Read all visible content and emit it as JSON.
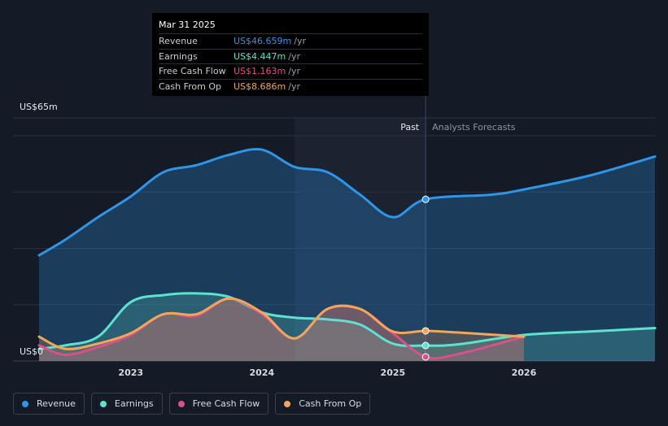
{
  "chart_data": {
    "type": "area",
    "title": "",
    "xlabel": "",
    "ylabel": "",
    "y_unit_top": "US$65m",
    "y_unit_bottom": "US$0",
    "ylim": [
      0,
      65
    ],
    "xlim": [
      2022.3,
      2027.0
    ],
    "x_ticks": [
      {
        "value": 2023.0,
        "label": "2023"
      },
      {
        "value": 2024.0,
        "label": "2024"
      },
      {
        "value": 2025.0,
        "label": "2025"
      },
      {
        "value": 2026.0,
        "label": "2026"
      }
    ],
    "past_label": "Past",
    "forecast_label": "Analysts Forecasts",
    "divider_x": 2025.25,
    "shade_start_x": 2024.25,
    "series": [
      {
        "name": "Revenue",
        "color": "#2f95e8",
        "values": [
          [
            2022.3,
            30.5
          ],
          [
            2022.5,
            35.0
          ],
          [
            2022.75,
            41.5
          ],
          [
            2023.0,
            47.5
          ],
          [
            2023.25,
            54.5
          ],
          [
            2023.5,
            56.5
          ],
          [
            2023.75,
            59.5
          ],
          [
            2024.0,
            61.0
          ],
          [
            2024.25,
            56.0
          ],
          [
            2024.5,
            54.5
          ],
          [
            2024.75,
            48.0
          ],
          [
            2025.0,
            41.5
          ],
          [
            2025.25,
            46.659
          ],
          [
            2025.75,
            48.0
          ],
          [
            2026.0,
            49.5
          ],
          [
            2026.5,
            53.5
          ],
          [
            2027.0,
            59.0
          ]
        ]
      },
      {
        "name": "Earnings",
        "color": "#5ee1cf",
        "values": [
          [
            2022.3,
            3.5
          ],
          [
            2022.5,
            4.5
          ],
          [
            2022.75,
            7.0
          ],
          [
            2023.0,
            17.0
          ],
          [
            2023.25,
            19.0
          ],
          [
            2023.5,
            19.5
          ],
          [
            2023.75,
            18.5
          ],
          [
            2024.0,
            14.0
          ],
          [
            2024.25,
            12.5
          ],
          [
            2024.5,
            12.0
          ],
          [
            2024.75,
            10.5
          ],
          [
            2025.0,
            5.0
          ],
          [
            2025.25,
            4.447
          ],
          [
            2025.5,
            4.8
          ],
          [
            2026.0,
            7.5
          ],
          [
            2026.5,
            8.5
          ],
          [
            2027.0,
            9.5
          ]
        ]
      },
      {
        "name": "Free Cash Flow",
        "color": "#d9508a",
        "values": [
          [
            2022.3,
            4.5
          ],
          [
            2022.5,
            1.8
          ],
          [
            2022.75,
            4.0
          ],
          [
            2023.0,
            7.5
          ],
          [
            2023.25,
            13.5
          ],
          [
            2023.5,
            13.0
          ],
          [
            2023.75,
            18.0
          ],
          [
            2024.0,
            13.5
          ],
          [
            2024.25,
            6.5
          ],
          [
            2024.5,
            15.0
          ],
          [
            2024.75,
            15.0
          ],
          [
            2025.0,
            8.0
          ],
          [
            2025.25,
            1.163
          ],
          [
            2025.5,
            2.0
          ],
          [
            2026.0,
            7.0
          ]
        ]
      },
      {
        "name": "Cash From Op",
        "color": "#f2a65a",
        "values": [
          [
            2022.3,
            7.0
          ],
          [
            2022.5,
            3.5
          ],
          [
            2022.75,
            5.0
          ],
          [
            2023.0,
            8.0
          ],
          [
            2023.25,
            13.5
          ],
          [
            2023.5,
            13.5
          ],
          [
            2023.75,
            18.0
          ],
          [
            2024.0,
            14.0
          ],
          [
            2024.25,
            6.5
          ],
          [
            2024.5,
            15.0
          ],
          [
            2024.75,
            15.0
          ],
          [
            2025.0,
            8.5
          ],
          [
            2025.25,
            8.686
          ],
          [
            2025.5,
            8.2
          ],
          [
            2026.0,
            7.0
          ]
        ]
      }
    ],
    "marker_x": 2025.25,
    "grid": true
  },
  "tooltip": {
    "date": "Mar 31 2025",
    "rows": [
      {
        "label": "Revenue",
        "value": "US$46.659m",
        "unit": "/yr",
        "color": "#2f95e8"
      },
      {
        "label": "Earnings",
        "value": "US$4.447m",
        "unit": "/yr",
        "color": "#5ee1cf"
      },
      {
        "label": "Free Cash Flow",
        "value": "US$1.163m",
        "unit": "/yr",
        "color": "#d9508a"
      },
      {
        "label": "Cash From Op",
        "value": "US$8.686m",
        "unit": "/yr",
        "color": "#f2a65a"
      }
    ]
  },
  "legend": [
    {
      "label": "Revenue",
      "color": "#2f95e8"
    },
    {
      "label": "Earnings",
      "color": "#5ee1cf"
    },
    {
      "label": "Free Cash Flow",
      "color": "#d9508a"
    },
    {
      "label": "Cash From Op",
      "color": "#f2a65a"
    }
  ]
}
